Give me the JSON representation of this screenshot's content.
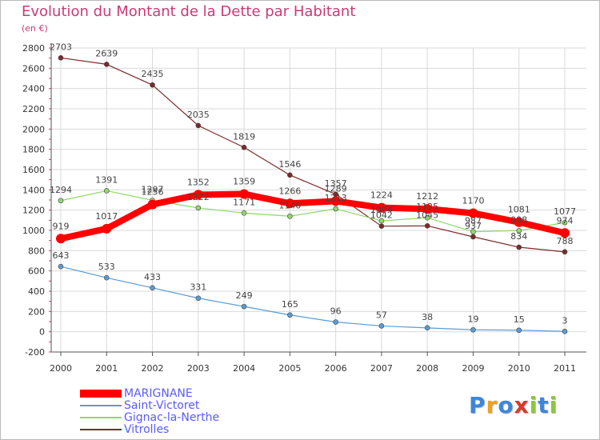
{
  "title": "Evolution du Montant de la Dette par Habitant",
  "subtitle": "(en €)",
  "logo": "Proxiti",
  "colors": {
    "title": "#cc3a75",
    "grid": "#d9d9d9",
    "axis": "#555555",
    "legend_text": "#5a5aff"
  },
  "chart_data": {
    "type": "line",
    "title": "Evolution du Montant de la Dette par Habitant",
    "ylabel": "(en €)",
    "xlabel": "",
    "x": [
      "2000",
      "2001",
      "2002",
      "2003",
      "2004",
      "2005",
      "2006",
      "2007",
      "2008",
      "2009",
      "2010",
      "2011"
    ],
    "ylim": [
      -200,
      2800
    ],
    "yticks": [
      -200,
      0,
      200,
      400,
      600,
      800,
      1000,
      1200,
      1400,
      1600,
      1800,
      2000,
      2200,
      2400,
      2600,
      2800
    ],
    "grid": true,
    "legend_position": "bottom-left",
    "series": [
      {
        "name": "MARIGNANE",
        "color": "#ff0000",
        "values": [
          919,
          1017,
          1256,
          1352,
          1359,
          1266,
          1289,
          1224,
          1212,
          1170,
          1081,
          974
        ]
      },
      {
        "name": "Saint-Victoret",
        "color": "#5b9bd5",
        "values": [
          643,
          533,
          433,
          331,
          249,
          165,
          96,
          57,
          38,
          19,
          15,
          3
        ]
      },
      {
        "name": "Gignac-la-Nerthe",
        "color": "#8fd86a",
        "values": [
          1294,
          1391,
          1297,
          1222,
          1171,
          1140,
          1213,
          1094,
          1125,
          987,
          998,
          1077
        ]
      },
      {
        "name": "Vitrolles",
        "color": "#7b2a2a",
        "values": [
          2703,
          2639,
          2435,
          2035,
          1819,
          1546,
          1357,
          1042,
          1045,
          937,
          834,
          788
        ]
      }
    ]
  }
}
